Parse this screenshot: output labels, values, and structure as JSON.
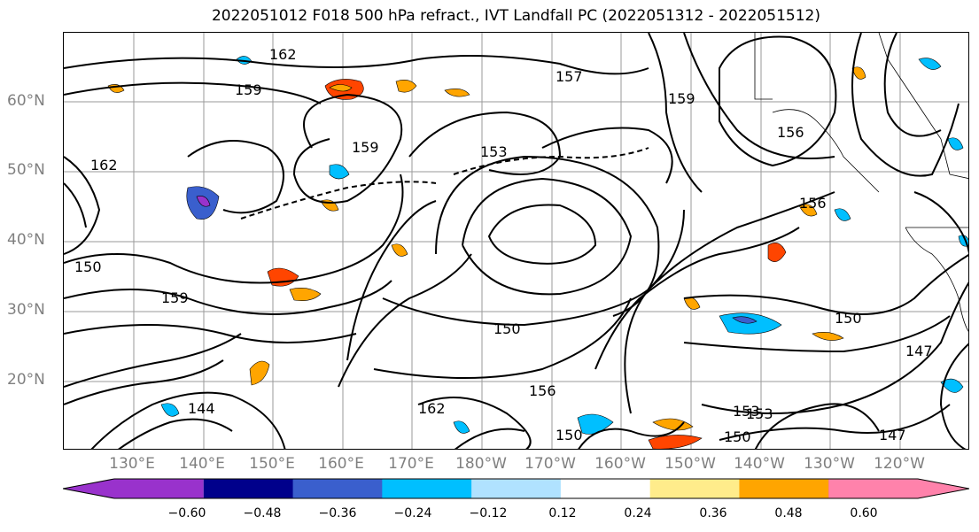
{
  "title": "2022051012 F018 500 hPa refract., IVT Landfall PC (2022051312 - 2022051512)",
  "lat_labels": [
    "60°N",
    "50°N",
    "40°N",
    "30°N",
    "20°N"
  ],
  "lon_labels": [
    "130°E",
    "140°E",
    "150°E",
    "160°E",
    "170°E",
    "180°W",
    "170°W",
    "160°W",
    "150°W",
    "140°W",
    "130°W",
    "120°W"
  ],
  "contour_labels": [
    "162",
    "159",
    "159",
    "153",
    "157",
    "156",
    "150",
    "153",
    "150",
    "150",
    "147",
    "150",
    "156",
    "159",
    "162",
    "159",
    "156",
    "150",
    "147",
    "144",
    "162",
    "153"
  ],
  "colorbar": {
    "ticks": [
      "−0.60",
      "−0.48",
      "−0.36",
      "−0.24",
      "−0.12",
      "0.12",
      "0.24",
      "0.36",
      "0.48",
      "0.60"
    ],
    "colors": [
      "#9932cc",
      "#00008b",
      "#3a5fcd",
      "#00bfff",
      "#b0e2ff",
      "#ffffff",
      "#ffec8b",
      "#ffa500",
      "#ff4500",
      "#b22222",
      "#ff82ab"
    ]
  }
}
